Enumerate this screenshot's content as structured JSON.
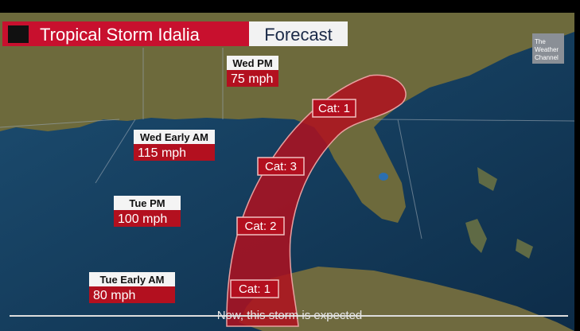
{
  "header": {
    "title": "Tropical Storm Idalia",
    "subtitle": "Forecast"
  },
  "logo": {
    "lines": [
      "The",
      "Weather",
      "Channel"
    ]
  },
  "forecast_points": [
    {
      "time": "Wed PM",
      "wind": "75 mph"
    },
    {
      "time": "Wed Early AM",
      "wind": "115 mph"
    },
    {
      "time": "Tue PM",
      "wind": "100 mph"
    },
    {
      "time": "Tue Early AM",
      "wind": "80 mph"
    }
  ],
  "cone_labels": [
    "Cat: 1",
    "Cat: 3",
    "Cat: 2",
    "Cat: 1"
  ],
  "caption": "Now, this storm is expected"
}
